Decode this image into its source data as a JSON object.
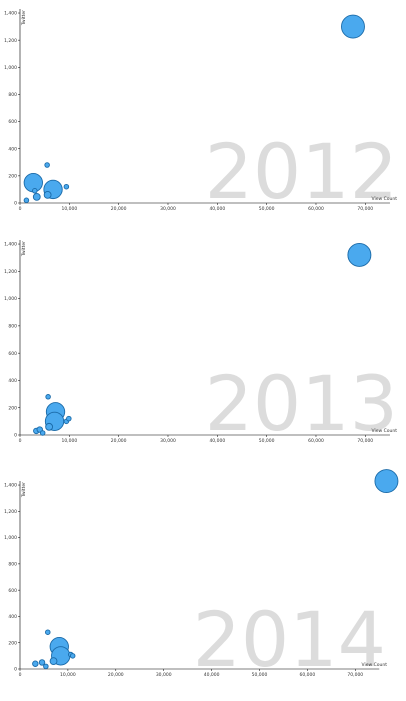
{
  "chart_data": [
    {
      "type": "scatter",
      "year_label": "2012",
      "xlabel": "View Count",
      "ylabel": "Twitter",
      "xlim": [
        0,
        75000
      ],
      "ylim": [
        0,
        1400
      ],
      "x_ticks": [
        "0",
        "10,000",
        "20,000",
        "30,000",
        "40,000",
        "50,000",
        "60,000",
        "70,000"
      ],
      "y_ticks": [
        "0",
        "200",
        "400",
        "600",
        "800",
        "1,000",
        "1,200",
        "1,400"
      ],
      "points": [
        {
          "x": 1300,
          "y": 20,
          "size": 1
        },
        {
          "x": 2700,
          "y": 150,
          "size": 4
        },
        {
          "x": 3000,
          "y": 90,
          "size": 1
        },
        {
          "x": 3400,
          "y": 45,
          "size": 1.5
        },
        {
          "x": 5500,
          "y": 280,
          "size": 1
        },
        {
          "x": 5600,
          "y": 60,
          "size": 1.5
        },
        {
          "x": 6700,
          "y": 100,
          "size": 4
        },
        {
          "x": 9400,
          "y": 120,
          "size": 1
        },
        {
          "x": 67500,
          "y": 1300,
          "size": 5
        }
      ]
    },
    {
      "type": "scatter",
      "year_label": "2013",
      "xlabel": "View Count",
      "ylabel": "Twitter",
      "xlim": [
        0,
        75000
      ],
      "ylim": [
        0,
        1400
      ],
      "x_ticks": [
        "0",
        "10,000",
        "20,000",
        "30,000",
        "40,000",
        "50,000",
        "60,000",
        "70,000"
      ],
      "y_ticks": [
        "0",
        "200",
        "400",
        "600",
        "800",
        "1,000",
        "1,200",
        "1,400"
      ],
      "points": [
        {
          "x": 3300,
          "y": 30,
          "size": 1.2
        },
        {
          "x": 4000,
          "y": 40,
          "size": 1.2
        },
        {
          "x": 4600,
          "y": 15,
          "size": 1
        },
        {
          "x": 5700,
          "y": 280,
          "size": 1
        },
        {
          "x": 5900,
          "y": 60,
          "size": 1.5
        },
        {
          "x": 7200,
          "y": 170,
          "size": 4
        },
        {
          "x": 7000,
          "y": 100,
          "size": 4
        },
        {
          "x": 9400,
          "y": 100,
          "size": 1
        },
        {
          "x": 9900,
          "y": 120,
          "size": 1
        },
        {
          "x": 68800,
          "y": 1320,
          "size": 5
        }
      ]
    },
    {
      "type": "scatter",
      "year_label": "2014",
      "xlabel": "View Count",
      "ylabel": "Twitter",
      "xlim": [
        0,
        75000
      ],
      "ylim": [
        0,
        1400
      ],
      "x_ticks": [
        "0",
        "10,000",
        "20,000",
        "30,000",
        "40,000",
        "50,000",
        "60,000",
        "70,000"
      ],
      "y_ticks": [
        "0",
        "200",
        "400",
        "600",
        "800",
        "1,000",
        "1,200",
        "1,400"
      ],
      "points": [
        {
          "x": 3200,
          "y": 40,
          "size": 1.2
        },
        {
          "x": 4600,
          "y": 50,
          "size": 1.2
        },
        {
          "x": 5400,
          "y": 20,
          "size": 1
        },
        {
          "x": 5800,
          "y": 280,
          "size": 1
        },
        {
          "x": 7000,
          "y": 60,
          "size": 1.5
        },
        {
          "x": 8200,
          "y": 170,
          "size": 4
        },
        {
          "x": 8500,
          "y": 100,
          "size": 4
        },
        {
          "x": 10600,
          "y": 110,
          "size": 1
        },
        {
          "x": 11000,
          "y": 100,
          "size": 1
        },
        {
          "x": 76500,
          "y": 1430,
          "size": 5
        }
      ]
    }
  ]
}
